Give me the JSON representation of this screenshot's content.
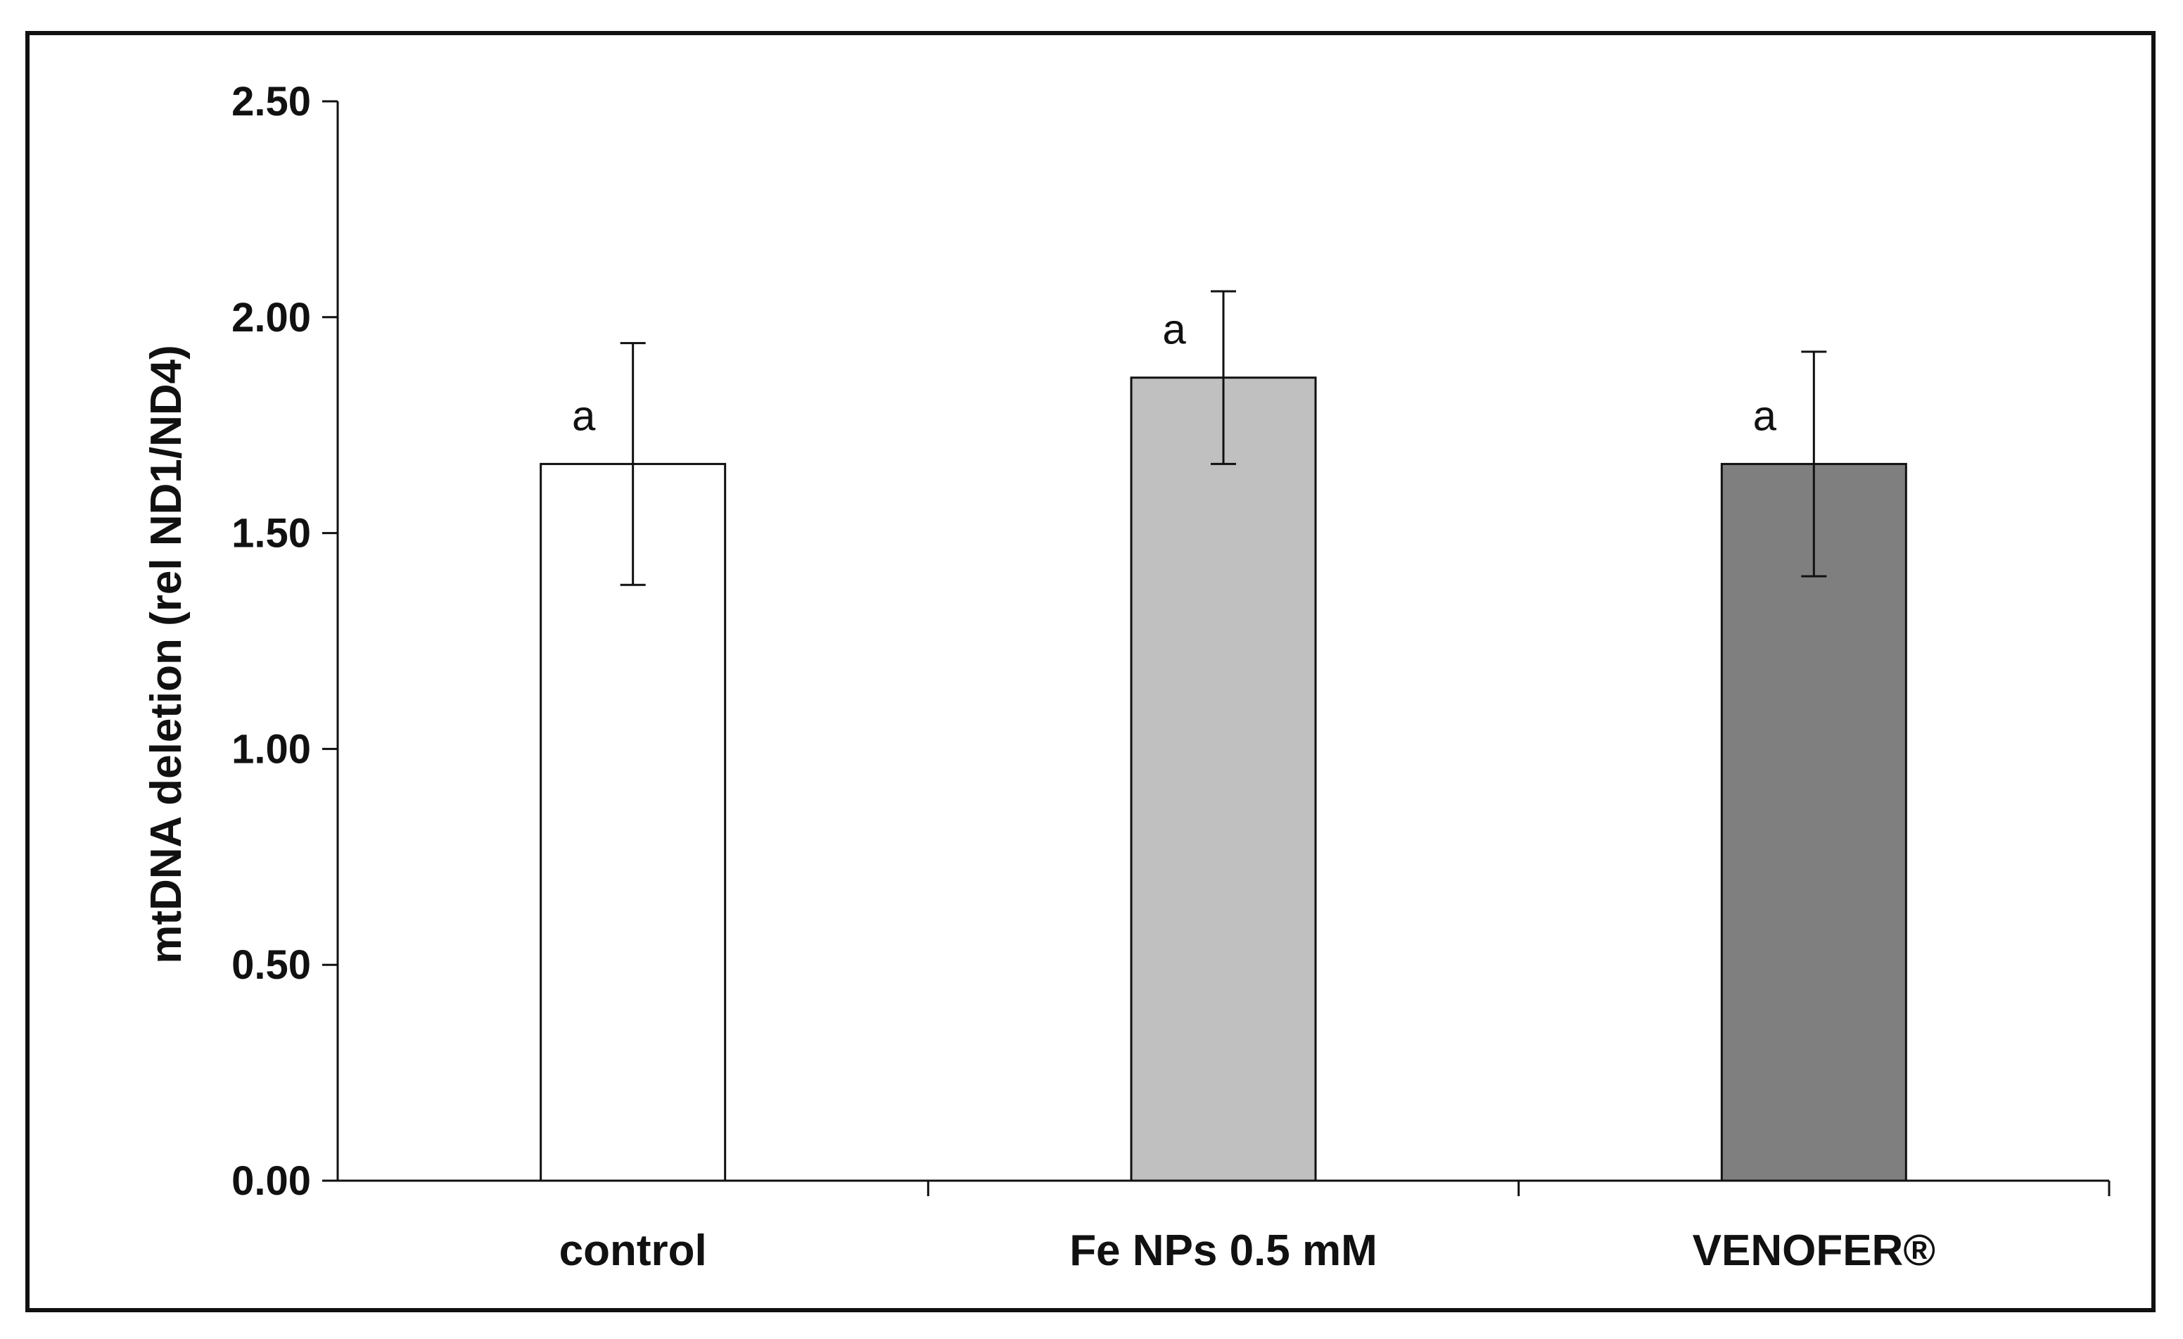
{
  "chart_data": {
    "type": "bar",
    "title": "",
    "xlabel": "",
    "ylabel": "mtDNA deletion (rel ND1/ND4)",
    "ylim": [
      0,
      2.5
    ],
    "yticks": [
      "0.00",
      "0.50",
      "1.00",
      "1.50",
      "2.00",
      "2.50"
    ],
    "categories": [
      "control",
      "Fe NPs 0.5 mM",
      "VENOFER®"
    ],
    "values": [
      1.66,
      1.86,
      1.66
    ],
    "errors": [
      0.28,
      0.2,
      0.26
    ],
    "annotations": [
      "a",
      "a",
      "a"
    ],
    "bar_colors": [
      "#ffffff",
      "#c0c0c0",
      "#7f7f7f"
    ],
    "bar_edge_color": "#111111",
    "grid": false,
    "legend": "none"
  }
}
